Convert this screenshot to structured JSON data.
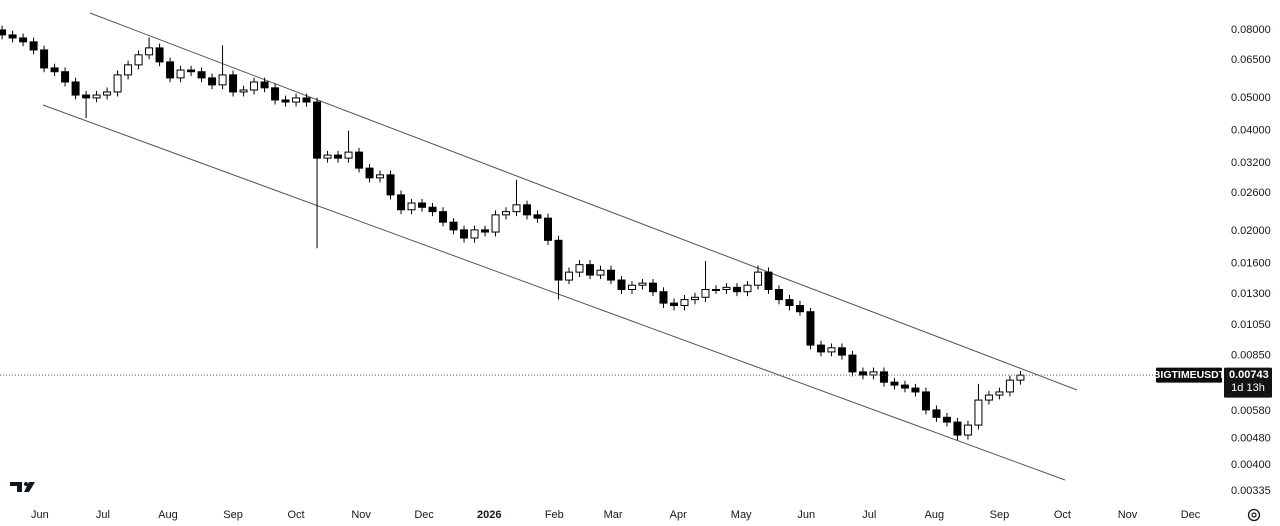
{
  "chart_data": {
    "type": "candlestick",
    "symbol": "BIGTIMEUSDT",
    "countdown": "1d 13h",
    "last_price": 0.00743,
    "log_scale": true,
    "grid": false,
    "up_color": "#ffffff",
    "down_color": "#000000",
    "wick_color": "#000000",
    "xlim": [
      -19,
      563
    ],
    "ylim": [
      0.00304,
      0.0983
    ],
    "xticks": [
      {
        "value": 0,
        "label": "Jun"
      },
      {
        "value": 30,
        "label": "Jul"
      },
      {
        "value": 61,
        "label": "Aug"
      },
      {
        "value": 92,
        "label": "Sep"
      },
      {
        "value": 122,
        "label": "Oct"
      },
      {
        "value": 153,
        "label": "Nov"
      },
      {
        "value": 183,
        "label": "Dec"
      },
      {
        "value": 214,
        "label": "2026"
      },
      {
        "value": 245,
        "label": "Feb"
      },
      {
        "value": 273,
        "label": "Mar"
      },
      {
        "value": 304,
        "label": "Apr"
      },
      {
        "value": 334,
        "label": "May"
      },
      {
        "value": 365,
        "label": "Jun"
      },
      {
        "value": 395,
        "label": "Jul"
      },
      {
        "value": 426,
        "label": "Aug"
      },
      {
        "value": 457,
        "label": "Sep"
      },
      {
        "value": 487,
        "label": "Oct"
      },
      {
        "value": 518,
        "label": "Nov"
      },
      {
        "value": 548,
        "label": "Dec"
      }
    ],
    "yticks": [
      {
        "value": 0.08,
        "label": "0.08000"
      },
      {
        "value": 0.065,
        "label": "0.06500"
      },
      {
        "value": 0.05,
        "label": "0.05000"
      },
      {
        "value": 0.04,
        "label": "0.04000"
      },
      {
        "value": 0.032,
        "label": "0.03200"
      },
      {
        "value": 0.026,
        "label": "0.02600"
      },
      {
        "value": 0.02,
        "label": "0.02000"
      },
      {
        "value": 0.016,
        "label": "0.01600"
      },
      {
        "value": 0.013,
        "label": "0.01300"
      },
      {
        "value": 0.0105,
        "label": "0.01050"
      },
      {
        "value": 0.0085,
        "label": "0.00850"
      },
      {
        "value": 0.0058,
        "label": "0.00580"
      },
      {
        "value": 0.0048,
        "label": "0.00480"
      },
      {
        "value": 0.004,
        "label": "0.00400"
      },
      {
        "value": 0.00335,
        "label": "0.00335"
      }
    ],
    "x": [
      -18,
      -13,
      -8,
      -3,
      2,
      7,
      12,
      17,
      22,
      27,
      32,
      37,
      42,
      47,
      52,
      57,
      62,
      67,
      72,
      77,
      82,
      87,
      92,
      97,
      102,
      107,
      112,
      117,
      122,
      127,
      132,
      137,
      142,
      147,
      152,
      157,
      162,
      167,
      172,
      177,
      182,
      187,
      192,
      197,
      202,
      207,
      212,
      217,
      222,
      227,
      232,
      237,
      242,
      247,
      252,
      257,
      262,
      267,
      272,
      277,
      282,
      287,
      292,
      297,
      302,
      307,
      312,
      317,
      322,
      327,
      332,
      337,
      342,
      347,
      352,
      357,
      362,
      367,
      372,
      377,
      382,
      387,
      392,
      397,
      402,
      407,
      412,
      417,
      422,
      427,
      432,
      437,
      442,
      447,
      452,
      457,
      462,
      467
    ],
    "open": [
      0.08,
      0.0773,
      0.0757,
      0.0737,
      0.0697,
      0.0616,
      0.06,
      0.0559,
      0.0511,
      0.0501,
      0.0511,
      0.0522,
      0.0587,
      0.0629,
      0.0674,
      0.0707,
      0.0642,
      0.0575,
      0.0607,
      0.06,
      0.0575,
      0.0548,
      0.0587,
      0.0522,
      0.0529,
      0.0559,
      0.0537,
      0.0494,
      0.0487,
      0.0501,
      0.0487,
      0.0331,
      0.0338,
      0.0331,
      0.0345,
      0.0309,
      0.0289,
      0.0295,
      0.0257,
      0.0232,
      0.0243,
      0.0236,
      0.0229,
      0.0213,
      0.0202,
      0.0191,
      0.0202,
      0.0199,
      0.0224,
      0.0229,
      0.024,
      0.0224,
      0.0219,
      0.0188,
      0.0143,
      0.0151,
      0.0159,
      0.0148,
      0.0153,
      0.0143,
      0.0134,
      0.0138,
      0.014,
      0.0132,
      0.0122,
      0.012,
      0.0125,
      0.0127,
      0.0134,
      0.0134,
      0.0136,
      0.0132,
      0.0138,
      0.0151,
      0.0134,
      0.0125,
      0.012,
      0.0115,
      0.00914,
      0.00872,
      0.00897,
      0.00853,
      0.0076,
      0.00744,
      0.0076,
      0.00708,
      0.00694,
      0.0068,
      0.00662,
      0.00585,
      0.00556,
      0.00538,
      0.00492,
      0.00527,
      0.00626,
      0.00648,
      0.00662,
      0.00718
    ],
    "high": [
      0.0824,
      0.0796,
      0.078,
      0.0759,
      0.0718,
      0.0634,
      0.0618,
      0.0576,
      0.0526,
      0.0526,
      0.0538,
      0.0605,
      0.0648,
      0.0694,
      0.076,
      0.0728,
      0.0661,
      0.0625,
      0.0625,
      0.0618,
      0.0592,
      0.072,
      0.0605,
      0.0545,
      0.0576,
      0.0576,
      0.0553,
      0.0509,
      0.0516,
      0.0516,
      0.0502,
      0.0348,
      0.0348,
      0.04,
      0.0355,
      0.0318,
      0.0304,
      0.0304,
      0.0265,
      0.025,
      0.025,
      0.0243,
      0.0236,
      0.0219,
      0.0208,
      0.0208,
      0.0208,
      0.0231,
      0.0236,
      0.0285,
      0.0247,
      0.0231,
      0.0226,
      0.0194,
      0.0156,
      0.0164,
      0.0164,
      0.0158,
      0.0158,
      0.0147,
      0.0142,
      0.0144,
      0.0144,
      0.0136,
      0.0126,
      0.0129,
      0.0131,
      0.0163,
      0.0138,
      0.014,
      0.014,
      0.0142,
      0.0158,
      0.0156,
      0.0138,
      0.0129,
      0.0124,
      0.0118,
      0.00941,
      0.00924,
      0.00924,
      0.00879,
      0.00783,
      0.00783,
      0.00783,
      0.00729,
      0.00715,
      0.007,
      0.00682,
      0.00603,
      0.00573,
      0.00554,
      0.00543,
      0.007,
      0.00667,
      0.00682,
      0.0074,
      0.00765
    ],
    "low": [
      0.075,
      0.0734,
      0.0715,
      0.0676,
      0.0598,
      0.0582,
      0.0542,
      0.0496,
      0.0436,
      0.0486,
      0.0496,
      0.0506,
      0.0569,
      0.061,
      0.0654,
      0.0623,
      0.0558,
      0.0558,
      0.0582,
      0.0558,
      0.0532,
      0.0532,
      0.0506,
      0.0506,
      0.0513,
      0.0521,
      0.0479,
      0.0472,
      0.0472,
      0.0472,
      0.0178,
      0.0321,
      0.0321,
      0.0321,
      0.03,
      0.028,
      0.028,
      0.0249,
      0.0225,
      0.0225,
      0.0229,
      0.0222,
      0.0207,
      0.0196,
      0.0185,
      0.0185,
      0.0193,
      0.0193,
      0.0217,
      0.0222,
      0.0217,
      0.0212,
      0.0182,
      0.0125,
      0.0139,
      0.0146,
      0.0144,
      0.0144,
      0.0139,
      0.013,
      0.013,
      0.0134,
      0.0128,
      0.0118,
      0.0116,
      0.0116,
      0.0121,
      0.0123,
      0.013,
      0.013,
      0.0128,
      0.0128,
      0.0134,
      0.013,
      0.0121,
      0.0116,
      0.0112,
      0.00887,
      0.00846,
      0.00846,
      0.00827,
      0.00737,
      0.00722,
      0.00722,
      0.00687,
      0.00673,
      0.0066,
      0.00642,
      0.00567,
      0.00539,
      0.00522,
      0.00475,
      0.00477,
      0.00511,
      0.00607,
      0.00629,
      0.00642,
      0.00696
    ],
    "close": [
      0.0773,
      0.0757,
      0.0737,
      0.0697,
      0.0616,
      0.06,
      0.0559,
      0.0511,
      0.0501,
      0.0511,
      0.0522,
      0.0587,
      0.0629,
      0.0674,
      0.0707,
      0.0642,
      0.0575,
      0.0607,
      0.06,
      0.0575,
      0.0548,
      0.0587,
      0.0522,
      0.0529,
      0.0559,
      0.0537,
      0.0494,
      0.0487,
      0.0501,
      0.0487,
      0.0331,
      0.0338,
      0.0331,
      0.0345,
      0.0309,
      0.0289,
      0.0295,
      0.0257,
      0.0232,
      0.0243,
      0.0236,
      0.0229,
      0.0213,
      0.0202,
      0.0191,
      0.0202,
      0.0199,
      0.0224,
      0.0229,
      0.024,
      0.0224,
      0.0219,
      0.0188,
      0.0143,
      0.0151,
      0.0159,
      0.0148,
      0.0153,
      0.0143,
      0.0134,
      0.0138,
      0.014,
      0.0132,
      0.0122,
      0.012,
      0.0125,
      0.0127,
      0.0134,
      0.0134,
      0.0136,
      0.0132,
      0.0138,
      0.0151,
      0.0134,
      0.0125,
      0.012,
      0.0115,
      0.00914,
      0.00872,
      0.00897,
      0.00853,
      0.0076,
      0.00744,
      0.0076,
      0.00708,
      0.00694,
      0.0068,
      0.00662,
      0.00585,
      0.00556,
      0.00538,
      0.00492,
      0.00527,
      0.00626,
      0.00648,
      0.00662,
      0.00718,
      0.00743
    ]
  }
}
